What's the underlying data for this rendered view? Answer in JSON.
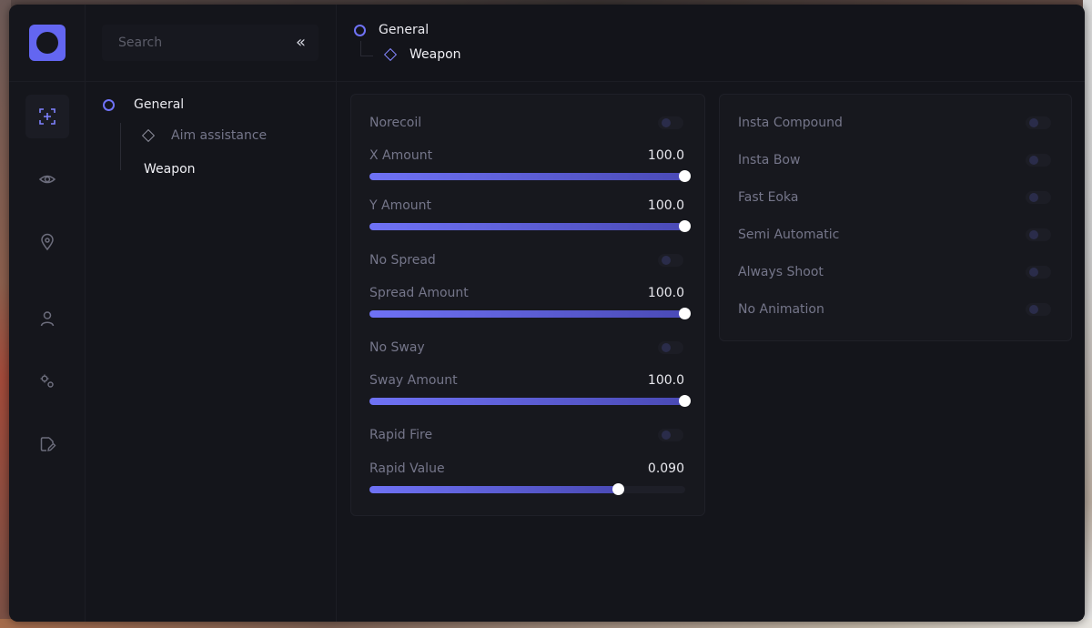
{
  "app": {
    "accent": "#6f72f5",
    "logo": "logo-icon"
  },
  "rail": {
    "items": [
      {
        "name": "aim-icon",
        "active": true
      },
      {
        "name": "eye-icon",
        "active": false
      },
      {
        "name": "map-pin-icon",
        "active": false
      },
      {
        "name": "user-icon",
        "active": false
      },
      {
        "name": "settings-gears-icon",
        "active": false
      },
      {
        "name": "edit-file-icon",
        "active": false
      }
    ]
  },
  "sidebar": {
    "search_placeholder": "Search",
    "collapse_icon": "«",
    "tree": {
      "group_label": "General",
      "children": [
        {
          "label": "Aim assistance"
        },
        {
          "label": "Weapon"
        }
      ]
    }
  },
  "breadcrumb": {
    "parent": "General",
    "current": "Weapon"
  },
  "left_card": {
    "norecoil_label": "Norecoil",
    "x_amount_label": "X Amount",
    "x_amount_value": "100.0",
    "x_amount_fraction": 1.0,
    "y_amount_label": "Y Amount",
    "y_amount_value": "100.0",
    "y_amount_fraction": 1.0,
    "no_spread_label": "No Spread",
    "spread_amount_label": "Spread Amount",
    "spread_amount_value": "100.0",
    "spread_amount_fraction": 1.0,
    "no_sway_label": "No Sway",
    "sway_amount_label": "Sway Amount",
    "sway_amount_value": "100.0",
    "sway_amount_fraction": 1.0,
    "rapid_fire_label": "Rapid Fire",
    "rapid_value_label": "Rapid Value",
    "rapid_value_value": "0.090",
    "rapid_value_fraction": 0.79
  },
  "right_card": {
    "toggles": [
      {
        "label": "Insta Compound"
      },
      {
        "label": "Insta Bow"
      },
      {
        "label": "Fast Eoka"
      },
      {
        "label": "Semi Automatic"
      },
      {
        "label": "Always Shoot"
      },
      {
        "label": "No Animation"
      }
    ]
  }
}
